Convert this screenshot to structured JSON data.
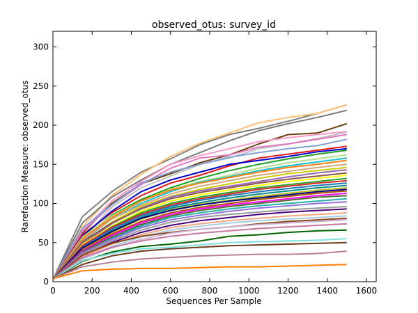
{
  "chart_data": {
    "type": "line",
    "title": "observed_otus: survey_id",
    "xlabel": "Sequences Per Sample",
    "ylabel": "Rarefaction Measure: observed_otus",
    "xlim": [
      0,
      1650
    ],
    "ylim": [
      0,
      320
    ],
    "xticks": [
      0,
      200,
      400,
      600,
      800,
      1000,
      1200,
      1400,
      1600
    ],
    "yticks": [
      0,
      50,
      100,
      150,
      200,
      250,
      300
    ],
    "grid": false,
    "legend": "none",
    "x": [
      2,
      150,
      300,
      450,
      600,
      750,
      900,
      1050,
      1200,
      1350,
      1500
    ],
    "series": [
      {
        "color": "#808080",
        "values": [
          4,
          83,
          115,
          140,
          157,
          175,
          188,
          196,
          205,
          215,
          226
        ]
      },
      {
        "color": "#fdbf6f",
        "values": [
          4,
          70,
          110,
          137,
          160,
          177,
          190,
          203,
          210,
          215,
          226
        ]
      },
      {
        "color": "#7a7a7a",
        "values": [
          4,
          75,
          108,
          130,
          150,
          165,
          180,
          193,
          202,
          210,
          219
        ]
      },
      {
        "color": "#6a3d0a",
        "values": [
          4,
          62,
          100,
          125,
          138,
          152,
          162,
          176,
          188,
          190,
          202
        ]
      },
      {
        "color": "#fb9ac8",
        "values": [
          4,
          65,
          103,
          128,
          150,
          161,
          170,
          179,
          184,
          188,
          192
        ]
      },
      {
        "color": "#c0c0c0",
        "values": [
          4,
          55,
          95,
          120,
          135,
          150,
          158,
          170,
          176,
          183,
          191
        ]
      },
      {
        "color": "#e377c2",
        "values": [
          4,
          64,
          98,
          124,
          145,
          158,
          162,
          172,
          176,
          182,
          188
        ]
      },
      {
        "color": "#7f9fd7",
        "values": [
          4,
          68,
          98,
          126,
          140,
          150,
          159,
          165,
          170,
          174,
          182
        ]
      },
      {
        "color": "#e31a1c",
        "values": [
          4,
          60,
          88,
          110,
          126,
          136,
          148,
          158,
          163,
          168,
          173
        ]
      },
      {
        "color": "#0000cc",
        "values": [
          4,
          58,
          90,
          115,
          130,
          140,
          150,
          155,
          160,
          166,
          170
        ]
      },
      {
        "color": "#1f9f1f",
        "values": [
          4,
          55,
          85,
          105,
          120,
          132,
          142,
          150,
          157,
          163,
          168
        ]
      },
      {
        "color": "#b2df8a",
        "values": [
          4,
          57,
          84,
          103,
          118,
          128,
          136,
          145,
          152,
          157,
          162
        ]
      },
      {
        "color": "#17becf",
        "values": [
          4,
          52,
          80,
          100,
          115,
          127,
          134,
          142,
          148,
          153,
          158
        ]
      },
      {
        "color": "#ff7f0e",
        "values": [
          4,
          55,
          82,
          103,
          117,
          126,
          133,
          140,
          146,
          150,
          155
        ]
      },
      {
        "color": "#d2a679",
        "values": [
          4,
          53,
          80,
          98,
          112,
          122,
          129,
          136,
          141,
          146,
          150
        ]
      },
      {
        "color": "#cccc00",
        "values": [
          4,
          50,
          76,
          96,
          109,
          118,
          125,
          132,
          138,
          142,
          146
        ]
      },
      {
        "color": "#9467bd",
        "values": [
          4,
          48,
          74,
          94,
          108,
          116,
          122,
          128,
          134,
          139,
          143
        ]
      },
      {
        "color": "#8c564b",
        "values": [
          4,
          51,
          75,
          93,
          106,
          114,
          120,
          126,
          131,
          135,
          139
        ]
      },
      {
        "color": "#ffff00",
        "values": [
          4,
          47,
          71,
          90,
          103,
          111,
          117,
          123,
          128,
          132,
          136
        ]
      },
      {
        "color": "#2ca02c",
        "values": [
          4,
          45,
          70,
          88,
          100,
          108,
          114,
          120,
          124,
          128,
          132
        ]
      },
      {
        "color": "#d62728",
        "values": [
          4,
          46,
          69,
          86,
          98,
          106,
          112,
          118,
          122,
          126,
          129
        ]
      },
      {
        "color": "#1f77b4",
        "values": [
          4,
          44,
          67,
          84,
          96,
          104,
          110,
          115,
          119,
          123,
          126
        ]
      },
      {
        "color": "#008b8b",
        "values": [
          4,
          42,
          65,
          82,
          94,
          101,
          107,
          112,
          116,
          120,
          123
        ]
      },
      {
        "color": "#bcbd22",
        "values": [
          4,
          41,
          63,
          80,
          92,
          99,
          104,
          109,
          113,
          117,
          120
        ]
      },
      {
        "color": "#000080",
        "values": [
          4,
          43,
          64,
          81,
          91,
          98,
          103,
          107,
          111,
          115,
          118
        ]
      },
      {
        "color": "#aa5500",
        "values": [
          4,
          40,
          61,
          77,
          88,
          95,
          100,
          105,
          109,
          113,
          116
        ]
      },
      {
        "color": "#ff00ff",
        "values": [
          4,
          39,
          59,
          75,
          86,
          93,
          98,
          102,
          106,
          110,
          113
        ]
      },
      {
        "color": "#556b2f",
        "values": [
          4,
          38,
          57,
          73,
          84,
          91,
          96,
          100,
          104,
          108,
          110
        ]
      },
      {
        "color": "#20b2aa",
        "values": [
          4,
          36,
          55,
          71,
          82,
          88,
          93,
          97,
          100,
          103,
          106
        ]
      },
      {
        "color": "#9370db",
        "values": [
          4,
          37,
          54,
          69,
          79,
          85,
          90,
          94,
          97,
          100,
          102
        ]
      },
      {
        "color": "#999999",
        "values": [
          4,
          35,
          52,
          66,
          76,
          82,
          86,
          89,
          92,
          94,
          96
        ]
      },
      {
        "color": "#4b0082",
        "values": [
          4,
          33,
          50,
          63,
          72,
          78,
          82,
          86,
          89,
          91,
          93
        ]
      },
      {
        "color": "#f4a582",
        "values": [
          4,
          32,
          48,
          60,
          69,
          74,
          78,
          81,
          84,
          86,
          88
        ]
      },
      {
        "color": "#a6cee3",
        "values": [
          4,
          30,
          45,
          57,
          66,
          71,
          75,
          78,
          80,
          82,
          84
        ]
      },
      {
        "color": "#8b4513",
        "values": [
          4,
          34,
          49,
          58,
          63,
          67,
          70,
          74,
          77,
          79,
          81
        ]
      },
      {
        "color": "#cab2d6",
        "values": [
          4,
          29,
          43,
          54,
          62,
          67,
          70,
          73,
          75,
          77,
          79
        ]
      },
      {
        "color": "#c875a0",
        "values": [
          4,
          31,
          44,
          52,
          58,
          62,
          65,
          68,
          70,
          72,
          74
        ]
      },
      {
        "color": "#006400",
        "values": [
          4,
          26,
          38,
          45,
          48,
          52,
          58,
          60,
          63,
          65,
          66
        ]
      },
      {
        "color": "#7fe0e0",
        "values": [
          4,
          27,
          36,
          42,
          44,
          47,
          50,
          51,
          52,
          53,
          55
        ]
      },
      {
        "color": "#6b3a1a",
        "values": [
          4,
          22,
          33,
          39,
          42,
          44,
          46,
          47,
          48,
          49,
          50
        ]
      },
      {
        "color": "#b9809a",
        "values": [
          4,
          19,
          25,
          29,
          31,
          33,
          34,
          35,
          35,
          36,
          39
        ]
      },
      {
        "color": "#ff7f00",
        "values": [
          4,
          14,
          16,
          17,
          17,
          18,
          19,
          19,
          20,
          21,
          22
        ]
      }
    ]
  }
}
